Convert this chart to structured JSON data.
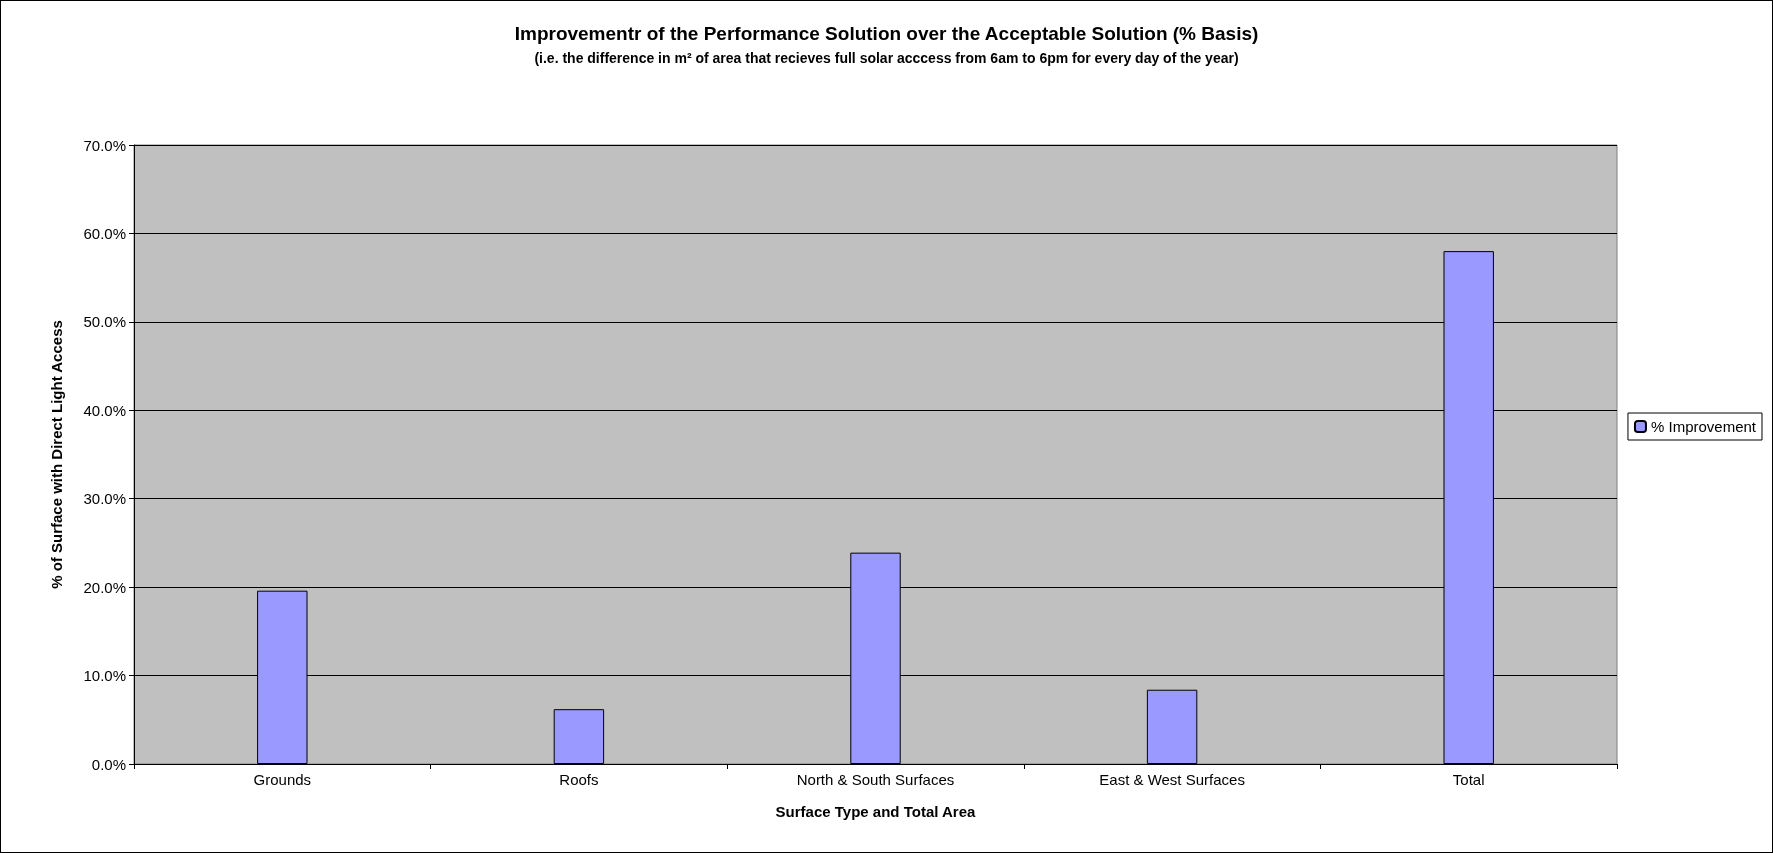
{
  "chart_data": {
    "type": "bar",
    "title": "Improvementr of the Performance Solution over the Acceptable Solution (% Basis)",
    "subtitle": "(i.e. the difference in m² of area that recieves full solar acccess from 6am to 6pm for every day of the year)",
    "xlabel": "Surface Type and Total Area",
    "ylabel": "% of Surface with Direct Light Access",
    "categories": [
      "Grounds",
      "Roofs",
      "North & South Surfaces",
      "East & West Surfaces",
      "Total"
    ],
    "series": [
      {
        "name": "% Improvement",
        "color": "#9999ff",
        "values": [
          19.6,
          6.2,
          23.9,
          8.4,
          58.0
        ]
      }
    ],
    "ylim": [
      0,
      70
    ],
    "yticks": [
      {
        "value": 0,
        "label": "0.0%"
      },
      {
        "value": 10,
        "label": "10.0%"
      },
      {
        "value": 20,
        "label": "20.0%"
      },
      {
        "value": 30,
        "label": "30.0%"
      },
      {
        "value": 40,
        "label": "40.0%"
      },
      {
        "value": 50,
        "label": "50.0%"
      },
      {
        "value": 60,
        "label": "60.0%"
      },
      {
        "value": 70,
        "label": "70.0%"
      }
    ],
    "grid": "y",
    "legend": "right"
  }
}
